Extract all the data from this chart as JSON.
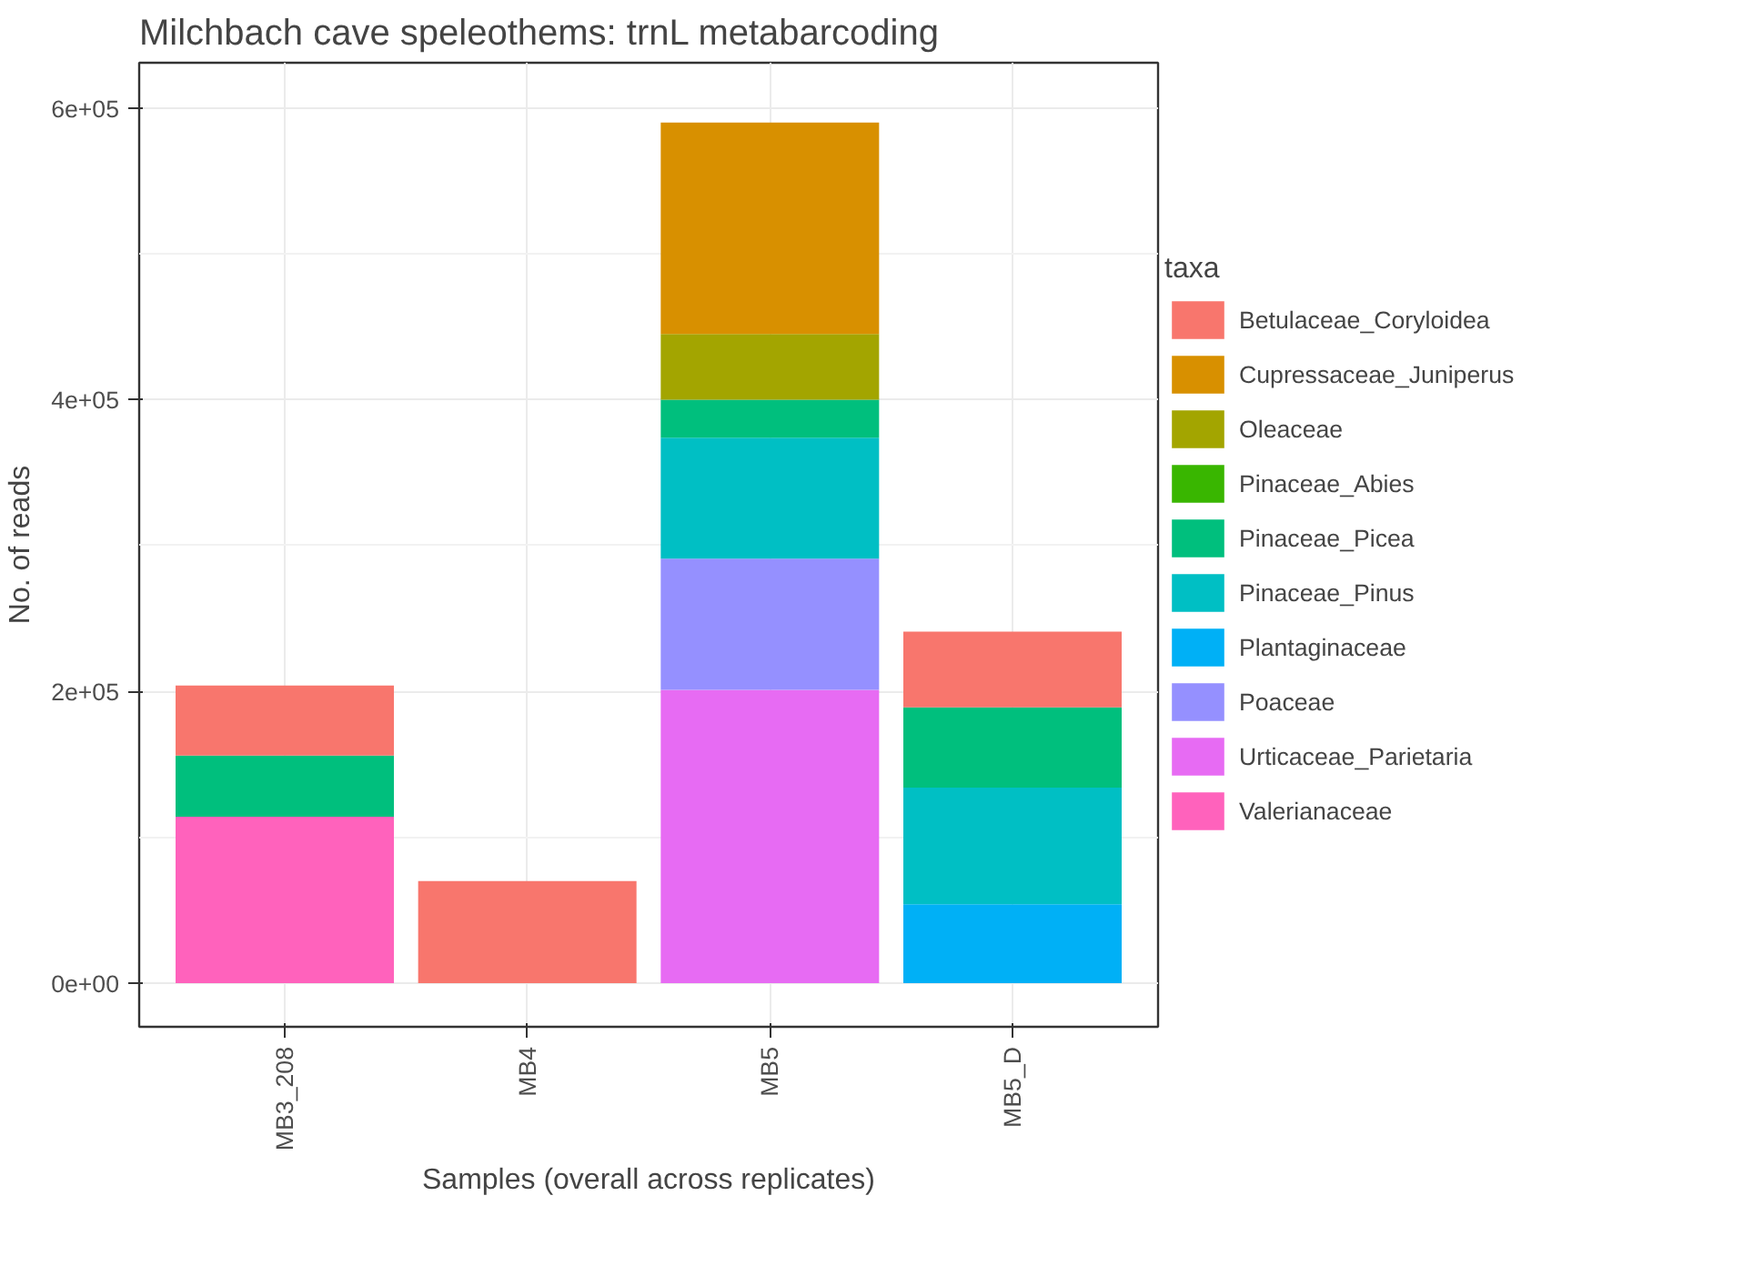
{
  "chart_data": {
    "type": "bar",
    "stacked": true,
    "title": "Milchbach cave speleothems: trnL metabarcoding",
    "xlabel": "Samples (overall across replicates)",
    "ylabel": "No. of reads",
    "legend_title": "taxa",
    "legend": "right",
    "grid": true,
    "categories": [
      "MB3_208",
      "MB4",
      "MB5",
      "MB5_D"
    ],
    "ylim": [
      -30000,
      631000
    ],
    "yticks": [
      {
        "value": 0,
        "label": "0e+00"
      },
      {
        "value": 200000,
        "label": "2e+05"
      },
      {
        "value": 400000,
        "label": "4e+05"
      },
      {
        "value": 600000,
        "label": "6e+05"
      }
    ],
    "series": [
      {
        "name": "Valerianaceae",
        "color": "#ff62bc",
        "values": [
          114000,
          null,
          null,
          null
        ]
      },
      {
        "name": "Urticaceae_Parietaria",
        "color": "#e76bf3",
        "values": [
          null,
          null,
          201000,
          null
        ]
      },
      {
        "name": "Poaceae",
        "color": "#9590ff",
        "values": [
          null,
          null,
          90000,
          null
        ]
      },
      {
        "name": "Plantaginaceae",
        "color": "#00b0f6",
        "values": [
          null,
          null,
          null,
          54000
        ]
      },
      {
        "name": "Pinaceae_Pinus",
        "color": "#00bfc4",
        "values": [
          null,
          null,
          83000,
          80000
        ]
      },
      {
        "name": "Pinaceae_Picea",
        "color": "#00bf7d",
        "values": [
          42000,
          null,
          26000,
          55000
        ]
      },
      {
        "name": "Pinaceae_Abies",
        "color": "#39b600",
        "values": [
          null,
          null,
          null,
          0
        ]
      },
      {
        "name": "Oleaceae",
        "color": "#a3a500",
        "values": [
          null,
          null,
          45000,
          null
        ]
      },
      {
        "name": "Cupressaceae_Juniperus",
        "color": "#d89000",
        "values": [
          null,
          null,
          145000,
          null
        ]
      },
      {
        "name": "Betulaceae_Coryloidea",
        "color": "#f8766d",
        "values": [
          48000,
          70000,
          null,
          52000
        ]
      }
    ]
  }
}
